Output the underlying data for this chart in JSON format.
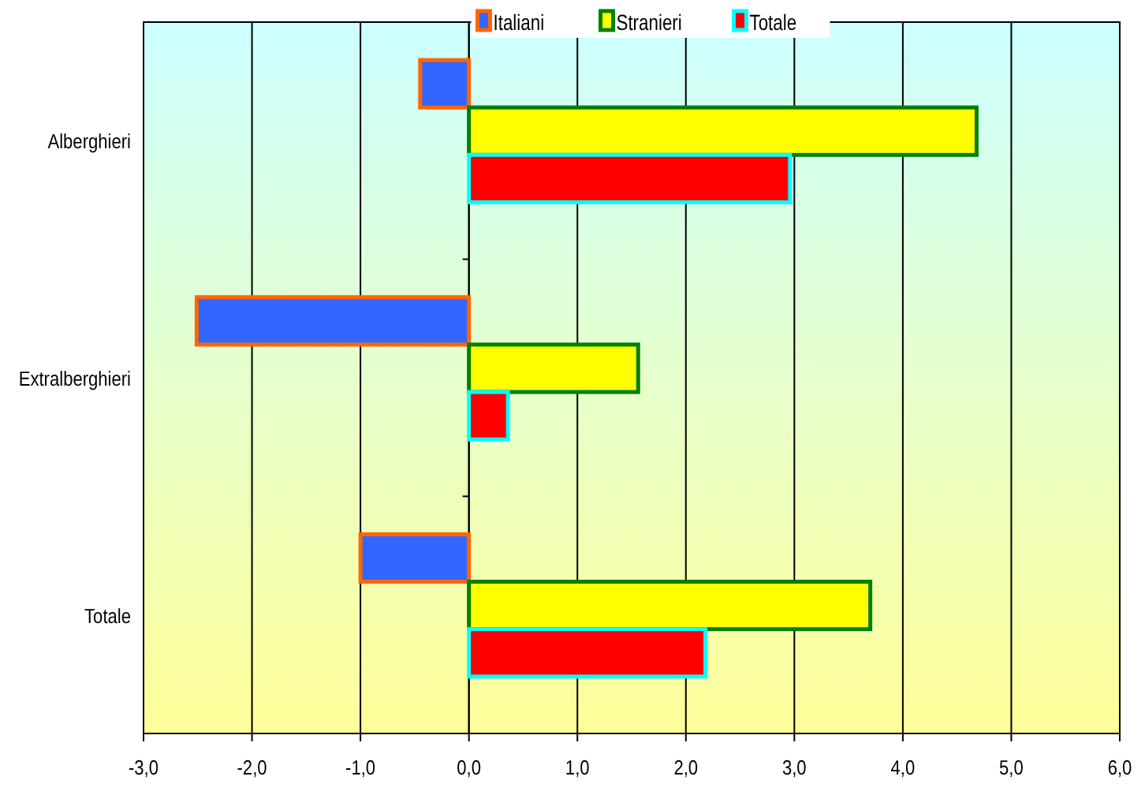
{
  "chart_data": {
    "type": "bar",
    "orientation": "horizontal",
    "categories": [
      "Alberghieri",
      "Extralberghieri",
      "Totale"
    ],
    "series": [
      {
        "name": "Italiani",
        "color": "#3366ff",
        "values": [
          -0.45,
          -2.51,
          -1.0
        ]
      },
      {
        "name": "Stranieri",
        "color": "#ffff00",
        "values": [
          4.68,
          1.56,
          3.7
        ]
      },
      {
        "name": "Totale",
        "color": "#ff0000",
        "values": [
          2.96,
          0.36,
          2.18
        ]
      }
    ],
    "xlim": [
      -3,
      6
    ],
    "xticks": [
      {
        "value": -3,
        "label": "-3,0"
      },
      {
        "value": -2,
        "label": "-2,0"
      },
      {
        "value": -1,
        "label": "-1,0"
      },
      {
        "value": 0,
        "label": "0,0"
      },
      {
        "value": 1,
        "label": "1,0"
      },
      {
        "value": 2,
        "label": "2,0"
      },
      {
        "value": 3,
        "label": "3,0"
      },
      {
        "value": 4,
        "label": "4,0"
      },
      {
        "value": 5,
        "label": "5,0"
      },
      {
        "value": 6,
        "label": "6,0"
      }
    ],
    "grid": "x",
    "legend": "top"
  }
}
